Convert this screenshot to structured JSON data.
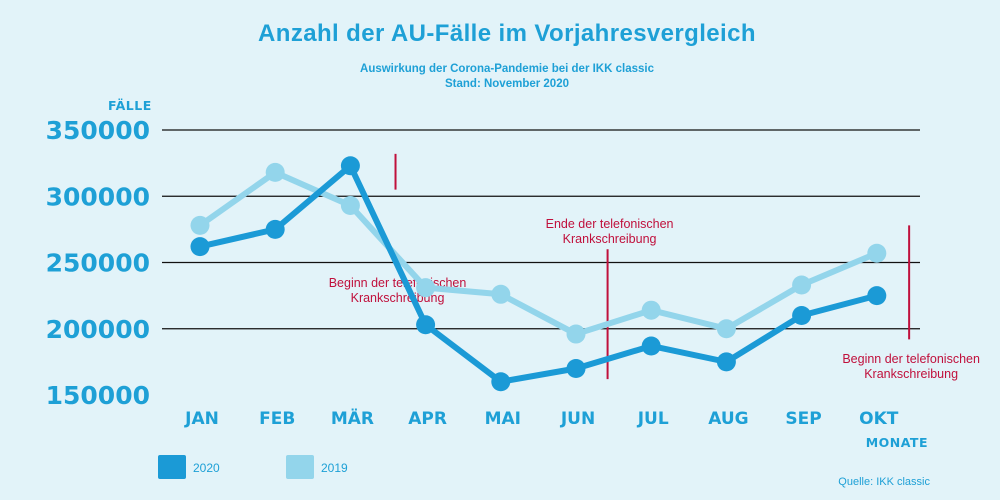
{
  "title": "Anzahl der AU-Fälle im Vorjahresvergleich",
  "subtitle_line1": "Auswirkung der Corona-Pandemie bei der IKK classic",
  "subtitle_line2": "Stand: November 2020",
  "source": "Quelle: IKK classic",
  "colors": {
    "background": "#e2f3f9",
    "accent": "#1ea0d6",
    "series_2020": "#1b9ad6",
    "series_2019": "#93d5eb",
    "annotation": "#c0103c"
  },
  "chart_data": {
    "type": "line",
    "title": "Anzahl der AU-Fälle im Vorjahresvergleich",
    "xlabel": "MONATE",
    "ylabel": "FÄLLE",
    "categories": [
      "JAN",
      "FEB",
      "MÄR",
      "APR",
      "MAI",
      "JUN",
      "JUL",
      "AUG",
      "SEP",
      "OKT"
    ],
    "ylim": [
      150000,
      350000
    ],
    "yticks": [
      350000,
      300000,
      250000,
      200000,
      150000
    ],
    "ytick_labels": [
      "350000",
      "300000",
      "250000",
      "200000",
      "150000"
    ],
    "grid": true,
    "legend_position": "bottom-left",
    "series": [
      {
        "name": "2020",
        "values": [
          262000,
          275000,
          323000,
          203000,
          160000,
          170000,
          187000,
          175000,
          210000,
          225000
        ]
      },
      {
        "name": "2019",
        "values": [
          278000,
          318000,
          293000,
          231000,
          226000,
          196000,
          214000,
          200000,
          233000,
          257000
        ]
      }
    ],
    "annotations": [
      {
        "month_position": 2.6,
        "line_from": 305000,
        "line_to": 332000,
        "text_lines": [
          "Beginn der telefonischen",
          "Krankschreibung"
        ]
      },
      {
        "month_position": 5.42,
        "line_from": 162000,
        "line_to": 260000,
        "text_lines": [
          "Ende der telefonischen",
          "Krankschreibung"
        ]
      },
      {
        "month_position": 9.43,
        "line_from": 192000,
        "line_to": 278000,
        "text_lines": [
          "Beginn der telefonischen",
          "Krankschreibung"
        ]
      }
    ]
  }
}
